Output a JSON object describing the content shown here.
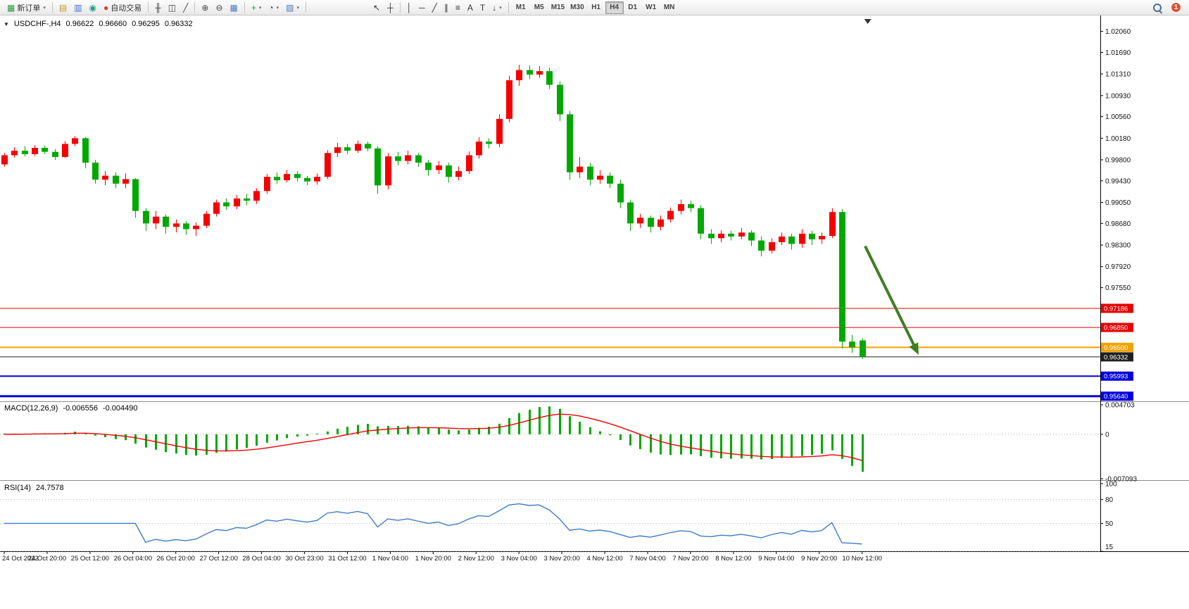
{
  "toolbar": {
    "notification_badge": "1",
    "active_timeframe": "H4",
    "buttons": [
      {
        "type": "labeled",
        "name": "new-order-button",
        "icon": "new-order-icon",
        "glyph": "▦",
        "color": "#1f9d3a",
        "label": "新订单",
        "dropdown": true
      },
      {
        "type": "sep"
      },
      {
        "type": "icon",
        "name": "charts-button",
        "icon": "chart-window-icon",
        "glyph": "▤",
        "color": "#c79a1b"
      },
      {
        "type": "icon",
        "name": "market-watch-button",
        "icon": "market-watch-icon",
        "glyph": "▥",
        "color": "#3b6fd4"
      },
      {
        "type": "icon",
        "name": "navigator-button",
        "icon": "navigator-icon",
        "glyph": "◉",
        "color": "#18a08c"
      },
      {
        "type": "labeled",
        "name": "auto-trading-button",
        "icon": "auto-trading-icon",
        "glyph": "●",
        "color": "#d63a31",
        "label": "自动交易"
      },
      {
        "type": "sep"
      },
      {
        "type": "icon",
        "name": "bar-chart-button",
        "icon": "bar-chart-icon",
        "glyph": "╫",
        "color": "#444444"
      },
      {
        "type": "icon",
        "name": "candlestick-chart-button",
        "icon": "candlestick-icon",
        "glyph": "◫",
        "color": "#444444"
      },
      {
        "type": "icon",
        "name": "line-chart-button",
        "icon": "line-chart-icon",
        "glyph": "╱",
        "color": "#444444"
      },
      {
        "type": "sep"
      },
      {
        "type": "icon",
        "name": "zoom-in-button",
        "icon": "zoom-in-icon",
        "glyph": "⊕",
        "color": "#444444"
      },
      {
        "type": "icon",
        "name": "zoom-out-button",
        "icon": "zoom-out-icon",
        "glyph": "⊖",
        "color": "#444444"
      },
      {
        "type": "icon",
        "name": "tile-windows-button",
        "icon": "tile-windows-icon",
        "glyph": "▦",
        "color": "#4a7ab8"
      },
      {
        "type": "sep"
      },
      {
        "type": "icon",
        "name": "indicators-button",
        "icon": "indicators-icon",
        "glyph": "+",
        "color": "#1f9d3a",
        "dropdown": true
      },
      {
        "type": "icon",
        "name": "periods-button",
        "icon": "clock-icon",
        "glyph": "◔",
        "color": "#444444",
        "dropdown": true
      },
      {
        "type": "icon",
        "name": "templates-button",
        "icon": "template-icon",
        "glyph": "▨",
        "color": "#4a7ab8",
        "dropdown": true
      },
      {
        "type": "sep"
      },
      {
        "type": "gap"
      },
      {
        "type": "icon",
        "name": "cursor-button",
        "icon": "cursor-icon",
        "glyph": "↖",
        "color": "#333333"
      },
      {
        "type": "icon",
        "name": "crosshair-button",
        "icon": "crosshair-icon",
        "glyph": "┼",
        "color": "#333333"
      },
      {
        "type": "sep"
      },
      {
        "type": "icon",
        "name": "vertical-line-button",
        "icon": "vertical-line-icon",
        "glyph": "│",
        "color": "#333333"
      },
      {
        "type": "icon",
        "name": "horizontal-line-button",
        "icon": "horizontal-line-icon",
        "glyph": "─",
        "color": "#333333"
      },
      {
        "type": "icon",
        "name": "trendline-button",
        "icon": "trendline-icon",
        "glyph": "╱",
        "color": "#333333"
      },
      {
        "type": "icon",
        "name": "channel-button",
        "icon": "channel-icon",
        "glyph": "∥",
        "color": "#333333"
      },
      {
        "type": "icon",
        "name": "fibonacci-button",
        "icon": "fibonacci-icon",
        "glyph": "≡",
        "color": "#333333"
      },
      {
        "type": "icon",
        "name": "text-button",
        "icon": "text-icon",
        "glyph": "A",
        "color": "#333333"
      },
      {
        "type": "icon",
        "name": "text-label-button",
        "icon": "text-label-icon",
        "glyph": "T",
        "color": "#333333"
      },
      {
        "type": "icon",
        "name": "arrows-button",
        "icon": "arrow-objects-icon",
        "glyph": "↓",
        "color": "#333333",
        "dropdown": true
      },
      {
        "type": "sep"
      },
      {
        "type": "tf",
        "label": "M1"
      },
      {
        "type": "tf",
        "label": "M5"
      },
      {
        "type": "tf",
        "label": "M15"
      },
      {
        "type": "tf",
        "label": "M30"
      },
      {
        "type": "tf",
        "label": "H1"
      },
      {
        "type": "tf",
        "label": "H4"
      },
      {
        "type": "tf",
        "label": "D1"
      },
      {
        "type": "tf",
        "label": "W1"
      },
      {
        "type": "tf",
        "label": "MN"
      }
    ]
  },
  "chart_data": {
    "type": "candlestick",
    "title": "USDCHF-,H4",
    "symbol": "USDCHF-",
    "timeframe": "H4",
    "icons": {
      "chart_menu": "▼",
      "shift_marker": "▼"
    },
    "current_bar": {
      "open": "0.96622",
      "high": "0.96660",
      "low": "0.96295",
      "close": "0.96332"
    },
    "colors": {
      "bull": "#f40000",
      "bear": "#00a800",
      "macd_histogram": "#00a800",
      "macd_signal": "#f40000",
      "rsi_line": "#3e7bc8",
      "axis_text": "#111111",
      "arrow": "#3e7d23",
      "background": "#ffffff"
    },
    "price_axis": {
      "ticks": [
        "1.02060",
        "1.01690",
        "1.01310",
        "1.00930",
        "1.00560",
        "1.00180",
        "0.99800",
        "0.99430",
        "0.99050",
        "0.98680",
        "0.98300",
        "0.97920",
        "0.97550"
      ]
    },
    "hlines": [
      {
        "price": 0.97186,
        "label": "0.97186",
        "color": "#e80000",
        "width": 1
      },
      {
        "price": 0.9685,
        "label": "0.96850",
        "color": "#e80000",
        "width": 1
      },
      {
        "price": 0.965,
        "label": "0.96500",
        "color": "#f2a100",
        "width": 2
      },
      {
        "price": 0.96332,
        "label": "0.96332",
        "color": "#202020",
        "width": 1
      },
      {
        "price": 0.95993,
        "label": "0.95993",
        "color": "#0000e0",
        "width": 2
      },
      {
        "price": 0.9564,
        "label": "0.95640",
        "color": "#0000e0",
        "width": 3
      }
    ],
    "candles": [
      [
        0.9972,
        0.9992,
        0.9968,
        0.9988
      ],
      [
        0.9988,
        1.0002,
        0.9984,
        0.9996
      ],
      [
        0.9996,
        1.0004,
        0.9986,
        0.999
      ],
      [
        0.999,
        1.0006,
        0.9987,
        1.0001
      ],
      [
        1.0001,
        1.0005,
        0.999,
        0.9994
      ],
      [
        0.9994,
        0.9999,
        0.998,
        0.9985
      ],
      [
        0.9985,
        1.0013,
        0.9983,
        1.0008
      ],
      [
        1.0008,
        1.0022,
        1.0004,
        1.0018
      ],
      [
        1.0018,
        1.002,
        0.9965,
        0.9975
      ],
      [
        0.9975,
        0.998,
        0.9938,
        0.9945
      ],
      [
        0.9945,
        0.996,
        0.9935,
        0.9952
      ],
      [
        0.9952,
        0.9958,
        0.993,
        0.9938
      ],
      [
        0.9938,
        0.9956,
        0.993,
        0.9946
      ],
      [
        0.9946,
        0.9948,
        0.9878,
        0.989
      ],
      [
        0.989,
        0.9895,
        0.9855,
        0.9868
      ],
      [
        0.9868,
        0.989,
        0.9858,
        0.988
      ],
      [
        0.988,
        0.9884,
        0.985,
        0.9862
      ],
      [
        0.9862,
        0.9875,
        0.9852,
        0.9868
      ],
      [
        0.9868,
        0.9872,
        0.9848,
        0.9858
      ],
      [
        0.9858,
        0.987,
        0.9846,
        0.9864
      ],
      [
        0.9864,
        0.989,
        0.986,
        0.9885
      ],
      [
        0.9885,
        0.991,
        0.988,
        0.9905
      ],
      [
        0.9905,
        0.9912,
        0.9892,
        0.9898
      ],
      [
        0.9898,
        0.9918,
        0.9893,
        0.9912
      ],
      [
        0.9912,
        0.992,
        0.99,
        0.9908
      ],
      [
        0.9908,
        0.993,
        0.9902,
        0.9925
      ],
      [
        0.9925,
        0.9955,
        0.992,
        0.995
      ],
      [
        0.995,
        0.9958,
        0.9938,
        0.9944
      ],
      [
        0.9944,
        0.9962,
        0.994,
        0.9955
      ],
      [
        0.9955,
        0.996,
        0.9942,
        0.9948
      ],
      [
        0.9948,
        0.9952,
        0.9935,
        0.9942
      ],
      [
        0.9942,
        0.9956,
        0.9936,
        0.995
      ],
      [
        0.995,
        0.9997,
        0.9946,
        0.9992
      ],
      [
        0.9992,
        1.001,
        0.9985,
        1.0002
      ],
      [
        1.0002,
        1.0008,
        0.999,
        0.9996
      ],
      [
        0.9996,
        1.0014,
        0.9992,
        1.0008
      ],
      [
        1.0008,
        1.0012,
        0.9995,
        1.0
      ],
      [
        1.0,
        1.0004,
        0.992,
        0.9935
      ],
      [
        0.9935,
        0.9992,
        0.9928,
        0.9986
      ],
      [
        0.9986,
        0.9994,
        0.997,
        0.9978
      ],
      [
        0.9978,
        0.9996,
        0.9972,
        0.9988
      ],
      [
        0.9988,
        0.9992,
        0.9968,
        0.9975
      ],
      [
        0.9975,
        0.998,
        0.9952,
        0.9962
      ],
      [
        0.9962,
        0.9978,
        0.9955,
        0.997
      ],
      [
        0.997,
        0.9975,
        0.994,
        0.995
      ],
      [
        0.995,
        0.9968,
        0.9944,
        0.996
      ],
      [
        0.996,
        0.9995,
        0.9955,
        0.9988
      ],
      [
        0.9988,
        1.002,
        0.9982,
        1.0012
      ],
      [
        1.0012,
        1.0018,
        1.0,
        1.0008
      ],
      [
        1.0008,
        1.006,
        1.0002,
        1.0052
      ],
      [
        1.0052,
        1.0128,
        1.0046,
        1.012
      ],
      [
        1.012,
        1.0147,
        1.011,
        1.0138
      ],
      [
        1.0138,
        1.0146,
        1.0122,
        1.013
      ],
      [
        1.013,
        1.0145,
        1.0124,
        1.0136
      ],
      [
        1.0136,
        1.0142,
        1.0105,
        1.0112
      ],
      [
        1.0112,
        1.0118,
        1.0048,
        1.006
      ],
      [
        1.006,
        1.0066,
        0.9945,
        0.9958
      ],
      [
        0.9958,
        0.9985,
        0.9948,
        0.9968
      ],
      [
        0.9968,
        0.9975,
        0.9935,
        0.9945
      ],
      [
        0.9945,
        0.9962,
        0.9938,
        0.9952
      ],
      [
        0.9952,
        0.9958,
        0.993,
        0.9938
      ],
      [
        0.9938,
        0.9945,
        0.9895,
        0.9905
      ],
      [
        0.9905,
        0.991,
        0.9855,
        0.9868
      ],
      [
        0.9868,
        0.9885,
        0.986,
        0.9878
      ],
      [
        0.9878,
        0.9882,
        0.9852,
        0.9862
      ],
      [
        0.9862,
        0.9882,
        0.9856,
        0.9875
      ],
      [
        0.9875,
        0.9896,
        0.987,
        0.989
      ],
      [
        0.989,
        0.991,
        0.9884,
        0.9902
      ],
      [
        0.9902,
        0.9908,
        0.9888,
        0.9895
      ],
      [
        0.9895,
        0.99,
        0.984,
        0.985
      ],
      [
        0.985,
        0.9858,
        0.9832,
        0.9842
      ],
      [
        0.9842,
        0.9856,
        0.9835,
        0.985
      ],
      [
        0.985,
        0.9855,
        0.9838,
        0.9845
      ],
      [
        0.9845,
        0.986,
        0.984,
        0.9852
      ],
      [
        0.9852,
        0.9856,
        0.9828,
        0.9838
      ],
      [
        0.9838,
        0.9845,
        0.981,
        0.982
      ],
      [
        0.982,
        0.9842,
        0.9815,
        0.9835
      ],
      [
        0.9835,
        0.9852,
        0.983,
        0.9845
      ],
      [
        0.9845,
        0.985,
        0.9822,
        0.9832
      ],
      [
        0.9832,
        0.9858,
        0.9825,
        0.985
      ],
      [
        0.985,
        0.9855,
        0.983,
        0.984
      ],
      [
        0.984,
        0.9852,
        0.9832,
        0.9846
      ],
      [
        0.9846,
        0.9895,
        0.9842,
        0.9888
      ],
      [
        0.9888,
        0.9893,
        0.9648,
        0.966
      ],
      [
        0.966,
        0.9672,
        0.964,
        0.965
      ],
      [
        0.96622,
        0.9666,
        0.96295,
        0.96332
      ]
    ],
    "arrow": {
      "from_bar": 85.3,
      "from_price": 0.9828,
      "to_bar": 90.6,
      "to_price": 0.9637,
      "width": 4
    },
    "time_axis": {
      "labels": [
        "24 Oct 2022",
        "24 Oct 20:00",
        "25 Oct 12:00",
        "26 Oct 04:00",
        "26 Oct 20:00",
        "27 Oct 12:00",
        "28 Oct 04:00",
        "30 Oct 23:00",
        "31 Oct 12:00",
        "1 Nov 04:00",
        "1 Nov 20:00",
        "2 Nov 12:00",
        "3 Nov 04:00",
        "3 Nov 20:00",
        "4 Nov 12:00",
        "7 Nov 04:00",
        "7 Nov 20:00",
        "8 Nov 12:00",
        "9 Nov 04:00",
        "9 Nov 20:00",
        "10 Nov 12:00"
      ]
    },
    "indicators": {
      "macd": {
        "title": "MACD(12,26,9)",
        "value_main": "-0.006556",
        "value_signal": "-0.004490",
        "params": [
          12,
          26,
          9
        ],
        "axis_labels": [
          "0.004703",
          "0",
          "-0.007093"
        ],
        "axis_max": 0.004703,
        "axis_min": -0.007093
      },
      "rsi": {
        "title": "RSI(14)",
        "value": "24.7578",
        "period": 14,
        "levels": [
          100,
          80,
          50,
          15
        ],
        "axis_max": 100,
        "axis_min": 15
      }
    }
  }
}
